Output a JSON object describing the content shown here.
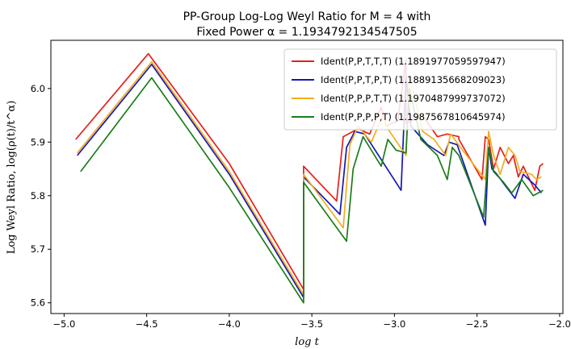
{
  "chart_data": {
    "type": "line",
    "title_line1": "PP-Group Log-Log Weyl Ratio for M = 4 with",
    "title_line2": "Fixed Power α = 1.1934792134547505",
    "xlabel": "log t",
    "ylabel": "Log Weyl Ratio, log(ρ(t)/t^α)",
    "xlim": [
      -5.08,
      -1.98
    ],
    "ylim": [
      5.58,
      6.09
    ],
    "xticks": [
      -5.0,
      -4.5,
      -4.0,
      -3.5,
      -3.0,
      -2.5,
      -2.0
    ],
    "xtick_labels": [
      "−5.0",
      "−4.5",
      "−4.0",
      "−3.5",
      "−3.0",
      "−2.5",
      "−2.0"
    ],
    "yticks": [
      5.6,
      5.7,
      5.8,
      5.9,
      6.0
    ],
    "ytick_labels": [
      "5.6",
      "5.7",
      "5.8",
      "5.9",
      "6.0"
    ],
    "grid": false,
    "legend_position": "top-right",
    "series": [
      {
        "name": "Ident(P,P,T,T,T) (1.1891977059597947)",
        "color": "#e4201c",
        "x": [
          -4.93,
          -4.49,
          -4.0,
          -3.55,
          -3.55,
          -3.35,
          -3.31,
          -3.22,
          -3.15,
          -3.08,
          -3.05,
          -2.98,
          -2.93,
          -2.93,
          -2.83,
          -2.74,
          -2.68,
          -2.61,
          -2.61,
          -2.47,
          -2.45,
          -2.43,
          -2.4,
          -2.36,
          -2.31,
          -2.28,
          -2.25,
          -2.22,
          -2.15,
          -2.12,
          -2.1
        ],
        "y": [
          5.905,
          6.065,
          5.86,
          5.625,
          5.855,
          5.79,
          5.91,
          5.925,
          5.915,
          5.965,
          5.93,
          5.94,
          6.055,
          5.935,
          5.95,
          5.91,
          5.915,
          5.91,
          5.905,
          5.83,
          5.91,
          5.905,
          5.85,
          5.89,
          5.86,
          5.875,
          5.835,
          5.855,
          5.81,
          5.855,
          5.86
        ]
      },
      {
        "name": "Ident(P,P,T,P,T) (1.1889135668209023)",
        "color": "#1418b5",
        "x": [
          -4.92,
          -4.47,
          -4.0,
          -3.55,
          -3.55,
          -3.33,
          -3.29,
          -3.24,
          -3.18,
          -2.96,
          -2.93,
          -2.9,
          -2.8,
          -2.7,
          -2.67,
          -2.62,
          -2.45,
          -2.43,
          -2.41,
          -2.38,
          -2.32,
          -2.27,
          -2.22,
          -2.15,
          -2.11
        ],
        "y": [
          5.875,
          6.045,
          5.84,
          5.61,
          5.835,
          5.765,
          5.89,
          5.92,
          5.915,
          5.81,
          6.025,
          5.93,
          5.895,
          5.875,
          5.9,
          5.895,
          5.745,
          5.89,
          5.85,
          5.84,
          5.815,
          5.795,
          5.84,
          5.82,
          5.805
        ]
      },
      {
        "name": "Ident(P,P,P,T,T) (1.1970487999737072)",
        "color": "#f2ad1e",
        "x": [
          -4.92,
          -4.47,
          -4.0,
          -3.55,
          -3.55,
          -3.31,
          -3.27,
          -3.22,
          -3.14,
          -3.07,
          -3.04,
          -2.93,
          -2.91,
          -2.83,
          -2.76,
          -2.69,
          -2.66,
          -2.6,
          -2.45,
          -2.43,
          -2.4,
          -2.36,
          -2.31,
          -2.27,
          -2.24,
          -2.17,
          -2.14,
          -2.11
        ],
        "y": [
          5.88,
          6.05,
          5.845,
          5.615,
          5.84,
          5.74,
          5.895,
          5.93,
          5.9,
          5.95,
          5.925,
          5.875,
          6.025,
          5.92,
          5.905,
          5.875,
          5.915,
          5.89,
          5.83,
          5.92,
          5.875,
          5.84,
          5.89,
          5.875,
          5.845,
          5.84,
          5.83,
          5.835
        ]
      },
      {
        "name": "Ident(P,P,P,P,T) (1.1987567810645974)",
        "color": "#1a7d1a",
        "x": [
          -4.9,
          -4.47,
          -4.0,
          -3.55,
          -3.55,
          -3.29,
          -3.25,
          -3.19,
          -3.08,
          -3.04,
          -2.99,
          -2.93,
          -2.91,
          -2.84,
          -2.74,
          -2.68,
          -2.65,
          -2.61,
          -2.46,
          -2.43,
          -2.4,
          -2.34,
          -2.29,
          -2.23,
          -2.16,
          -2.1
        ],
        "y": [
          5.845,
          6.02,
          5.815,
          5.6,
          5.825,
          5.715,
          5.85,
          5.91,
          5.855,
          5.905,
          5.885,
          5.88,
          6.0,
          5.905,
          5.875,
          5.83,
          5.89,
          5.875,
          5.76,
          5.89,
          5.845,
          5.825,
          5.805,
          5.83,
          5.8,
          5.81
        ]
      }
    ]
  }
}
